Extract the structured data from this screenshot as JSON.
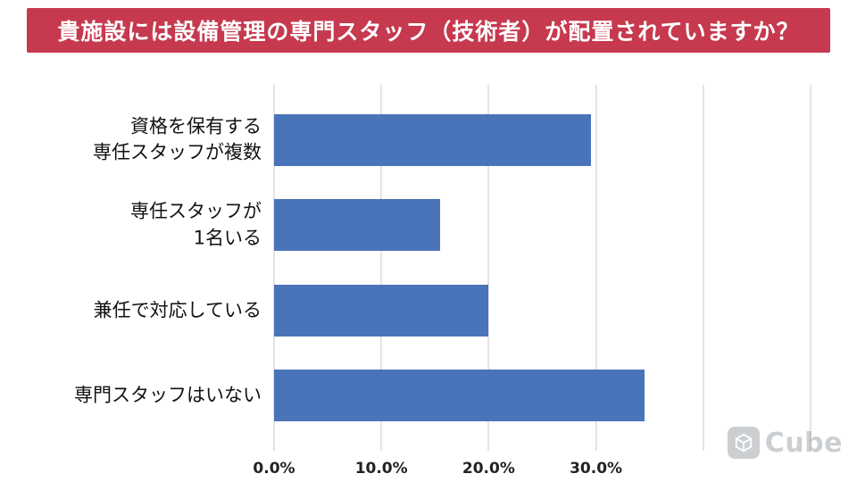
{
  "header": {
    "title": "貴施設には設備管理の専門スタッフ（技術者）が配置されていますか？",
    "bg_color": "#c6394f"
  },
  "chart_data": {
    "type": "bar",
    "orientation": "horizontal",
    "title": "貴施設には設備管理の専門スタッフ（技術者）が配置されていますか？",
    "categories": [
      "資格を保有する\n専任スタッフが複数",
      "専任スタッフが\n1名いる",
      "兼任で対応している",
      "専門スタッフはいない"
    ],
    "values": [
      29.5,
      15.5,
      20.0,
      34.5
    ],
    "unit": "%",
    "xlabel": "",
    "ylabel": "",
    "xlim": [
      0,
      50
    ],
    "xticks": {
      "values": [
        0,
        10,
        20,
        30
      ],
      "labels": [
        "0.0%",
        "10.0%",
        "20.0%",
        "30.0%"
      ]
    },
    "gridline_values": [
      0,
      10,
      20,
      30,
      40,
      50
    ],
    "grid": true,
    "legend": false,
    "bar_color": "#4a74b9",
    "gridline_color": "#c9c9c9"
  },
  "watermark": {
    "label": "Cube"
  }
}
